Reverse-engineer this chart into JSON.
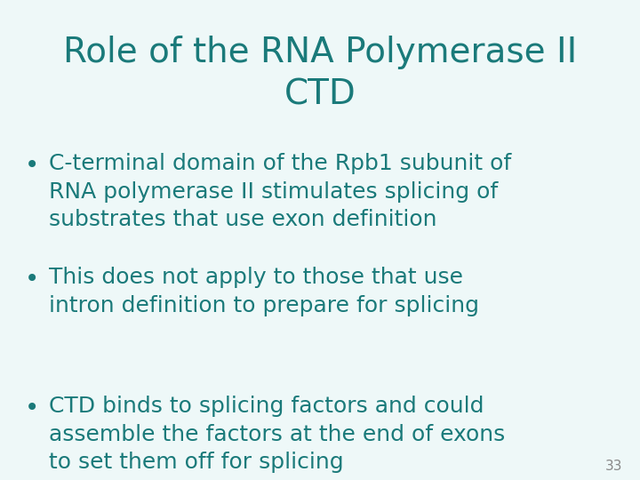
{
  "title_line1": "Role of the RNA Polymerase II",
  "title_line2": "CTD",
  "title_color": "#1a7a7a",
  "title_fontsize": 28,
  "background_color": "#eef8f8",
  "bullet_color": "#1a7a7a",
  "bullet_fontsize": 18,
  "page_number": "33",
  "page_number_color": "#888888",
  "page_number_fontsize": 11,
  "bullets": [
    "C-terminal domain of the Rpb1 subunit of\nRNA polymerase II stimulates splicing of\nsubstrates that use exon definition",
    "This does not apply to those that use\nintron definition to prepare for splicing",
    "CTD binds to splicing factors and could\nassemble the factors at the end of exons\nto set them off for splicing"
  ]
}
